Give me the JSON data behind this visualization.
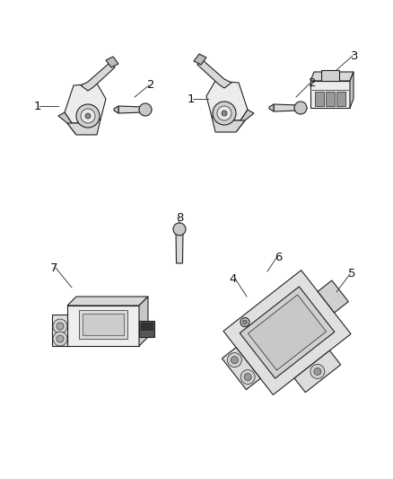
{
  "bg_color": "#ffffff",
  "fig_width": 4.38,
  "fig_height": 5.33,
  "dpi": 100,
  "lc": "#444444",
  "lc_dark": "#222222",
  "fill_light": "#f0f0f0",
  "fill_mid": "#d8d8d8",
  "fill_dark": "#b0b0b0",
  "fill_black": "#555555",
  "text_color": "#111111",
  "font_size": 9.5
}
